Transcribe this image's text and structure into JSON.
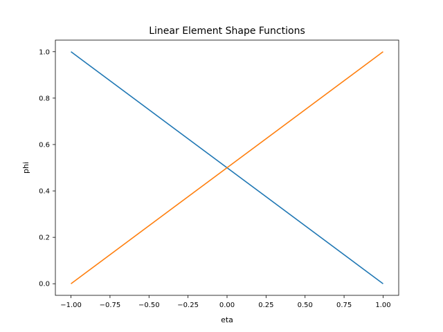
{
  "chart_data": {
    "type": "line",
    "title": "Linear Element Shape Functions",
    "xlabel": "eta",
    "ylabel": "phi",
    "xlim": [
      -1.1,
      1.1
    ],
    "ylim": [
      -0.05,
      1.05
    ],
    "xticks": [
      -1.0,
      -0.75,
      -0.5,
      -0.25,
      0.0,
      0.25,
      0.5,
      0.75,
      1.0
    ],
    "xtick_labels": [
      "−1.00",
      "−0.75",
      "−0.50",
      "−0.25",
      "0.00",
      "0.25",
      "0.50",
      "0.75",
      "1.00"
    ],
    "yticks": [
      0.0,
      0.2,
      0.4,
      0.6,
      0.8,
      1.0
    ],
    "ytick_labels": [
      "0.0",
      "0.2",
      "0.4",
      "0.6",
      "0.8",
      "1.0"
    ],
    "grid": false,
    "series": [
      {
        "x": [
          -1.0,
          1.0
        ],
        "y": [
          1.0,
          0.0
        ],
        "color": "#1f77b4"
      },
      {
        "x": [
          -1.0,
          1.0
        ],
        "y": [
          0.0,
          1.0
        ],
        "color": "#ff7f0e"
      }
    ]
  }
}
